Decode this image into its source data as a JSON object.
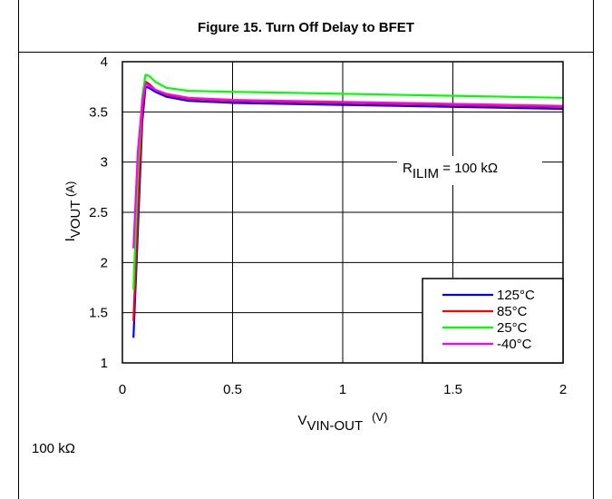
{
  "figure": {
    "title": "Figure 15. Turn Off Delay to BFET",
    "footnote": "100 kΩ"
  },
  "annotation": {
    "main": "R",
    "sub": "ILIM",
    "rest": " = 100 kΩ"
  },
  "axes": {
    "xlabel_main": "V",
    "xlabel_sub": "VIN-OUT",
    "xlabel_unit": "(V)",
    "ylabel_main": "I",
    "ylabel_sub": "VOUT",
    "ylabel_unit": " (A)"
  },
  "chart_data": {
    "type": "line",
    "xlim": [
      0,
      2
    ],
    "ylim": [
      1,
      4
    ],
    "xticks": [
      {
        "value": 0,
        "label": "0"
      },
      {
        "value": 0.5,
        "label": "0.5"
      },
      {
        "value": 1,
        "label": "1"
      },
      {
        "value": 1.5,
        "label": "1.5"
      },
      {
        "value": 2,
        "label": "2"
      }
    ],
    "yticks": [
      {
        "value": 1,
        "label": "1"
      },
      {
        "value": 1.5,
        "label": "1.5"
      },
      {
        "value": 2,
        "label": "2"
      },
      {
        "value": 2.5,
        "label": "2.5"
      },
      {
        "value": 3,
        "label": "3"
      },
      {
        "value": 3.5,
        "label": "3.5"
      },
      {
        "value": 4,
        "label": "4"
      }
    ],
    "grid": true,
    "legend_position": "bottom-right",
    "series": [
      {
        "name": "125°C",
        "color": "#0000ff",
        "x": [
          0.05,
          0.07,
          0.09,
          0.105,
          0.12,
          0.15,
          0.2,
          0.3,
          0.5,
          1.0,
          1.5,
          2.0
        ],
        "y": [
          1.25,
          2.3,
          3.4,
          3.75,
          3.74,
          3.7,
          3.65,
          3.61,
          3.59,
          3.57,
          3.55,
          3.53
        ]
      },
      {
        "name": "85°C",
        "color": "#ff0000",
        "x": [
          0.05,
          0.07,
          0.09,
          0.105,
          0.12,
          0.15,
          0.2,
          0.3,
          0.5,
          1.0,
          1.5,
          2.0
        ],
        "y": [
          1.42,
          2.5,
          3.5,
          3.8,
          3.78,
          3.72,
          3.67,
          3.63,
          3.61,
          3.59,
          3.57,
          3.55
        ]
      },
      {
        "name": "25°C",
        "color": "#00ff00",
        "x": [
          0.05,
          0.07,
          0.09,
          0.105,
          0.12,
          0.15,
          0.2,
          0.3,
          0.5,
          1.0,
          1.5,
          2.0
        ],
        "y": [
          1.73,
          2.9,
          3.65,
          3.87,
          3.86,
          3.8,
          3.74,
          3.71,
          3.7,
          3.68,
          3.66,
          3.64
        ]
      },
      {
        "name": "-40°C",
        "color": "#ff00ff",
        "x": [
          0.05,
          0.07,
          0.09,
          0.105,
          0.12,
          0.15,
          0.2,
          0.3,
          0.5,
          1.0,
          1.5,
          2.0
        ],
        "y": [
          2.14,
          3.1,
          3.6,
          3.78,
          3.76,
          3.72,
          3.68,
          3.64,
          3.62,
          3.6,
          3.58,
          3.56
        ]
      }
    ]
  }
}
